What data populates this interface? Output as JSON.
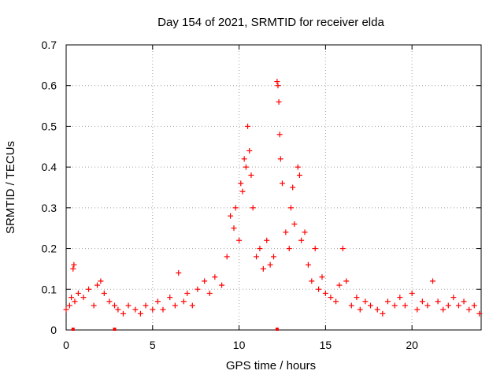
{
  "chart_data": {
    "type": "scatter",
    "title": "Day 154 of 2021, SRMTID for receiver elda",
    "xlabel": "GPS time / hours",
    "ylabel": "SRMTID / TECUs",
    "xlim": [
      0,
      24
    ],
    "ylim": [
      0,
      0.7
    ],
    "x_ticks": [
      0,
      5,
      10,
      15,
      20
    ],
    "y_ticks": [
      0,
      0.1,
      0.2,
      0.3,
      0.4,
      0.5,
      0.6,
      0.7
    ],
    "grid": true,
    "marker": "+",
    "marker_color": "#ff0000",
    "baseline_markers_x": [
      0.4,
      2.8,
      12.2
    ],
    "series": [
      {
        "name": "SRMTID",
        "x": [
          0.0,
          0.2,
          0.3,
          0.4,
          0.45,
          0.5,
          0.7,
          1.0,
          1.3,
          1.6,
          1.8,
          2.0,
          2.2,
          2.5,
          2.8,
          3.0,
          3.3,
          3.6,
          4.0,
          4.3,
          4.6,
          5.0,
          5.3,
          5.6,
          6.0,
          6.3,
          6.5,
          6.8,
          7.0,
          7.3,
          7.6,
          8.0,
          8.3,
          8.6,
          9.0,
          9.3,
          9.5,
          9.7,
          9.8,
          10.0,
          10.1,
          10.2,
          10.3,
          10.4,
          10.5,
          10.6,
          10.7,
          10.8,
          11.0,
          11.2,
          11.4,
          11.6,
          11.8,
          12.0,
          12.2,
          12.25,
          12.3,
          12.35,
          12.4,
          12.5,
          12.7,
          12.9,
          13.0,
          13.1,
          13.2,
          13.4,
          13.5,
          13.6,
          13.8,
          14.0,
          14.2,
          14.4,
          14.6,
          14.8,
          15.0,
          15.3,
          15.6,
          15.8,
          16.0,
          16.2,
          16.5,
          16.8,
          17.0,
          17.3,
          17.6,
          18.0,
          18.3,
          18.6,
          19.0,
          19.3,
          19.6,
          20.0,
          20.3,
          20.6,
          20.9,
          21.2,
          21.5,
          21.8,
          22.1,
          22.4,
          22.7,
          23.0,
          23.3,
          23.6,
          23.9
        ],
        "y": [
          0.05,
          0.06,
          0.08,
          0.15,
          0.16,
          0.07,
          0.09,
          0.08,
          0.1,
          0.06,
          0.11,
          0.12,
          0.09,
          0.07,
          0.06,
          0.05,
          0.04,
          0.06,
          0.05,
          0.04,
          0.06,
          0.05,
          0.07,
          0.05,
          0.08,
          0.06,
          0.14,
          0.07,
          0.09,
          0.06,
          0.1,
          0.12,
          0.09,
          0.13,
          0.11,
          0.18,
          0.28,
          0.25,
          0.3,
          0.22,
          0.36,
          0.34,
          0.42,
          0.4,
          0.5,
          0.44,
          0.38,
          0.3,
          0.18,
          0.2,
          0.15,
          0.22,
          0.16,
          0.18,
          0.61,
          0.6,
          0.56,
          0.48,
          0.42,
          0.36,
          0.24,
          0.2,
          0.3,
          0.35,
          0.26,
          0.4,
          0.38,
          0.22,
          0.24,
          0.16,
          0.12,
          0.2,
          0.1,
          0.13,
          0.09,
          0.08,
          0.07,
          0.11,
          0.2,
          0.12,
          0.06,
          0.08,
          0.05,
          0.07,
          0.06,
          0.05,
          0.04,
          0.07,
          0.06,
          0.08,
          0.06,
          0.09,
          0.05,
          0.07,
          0.06,
          0.12,
          0.07,
          0.05,
          0.06,
          0.08,
          0.06,
          0.07,
          0.05,
          0.06,
          0.04
        ]
      }
    ]
  }
}
